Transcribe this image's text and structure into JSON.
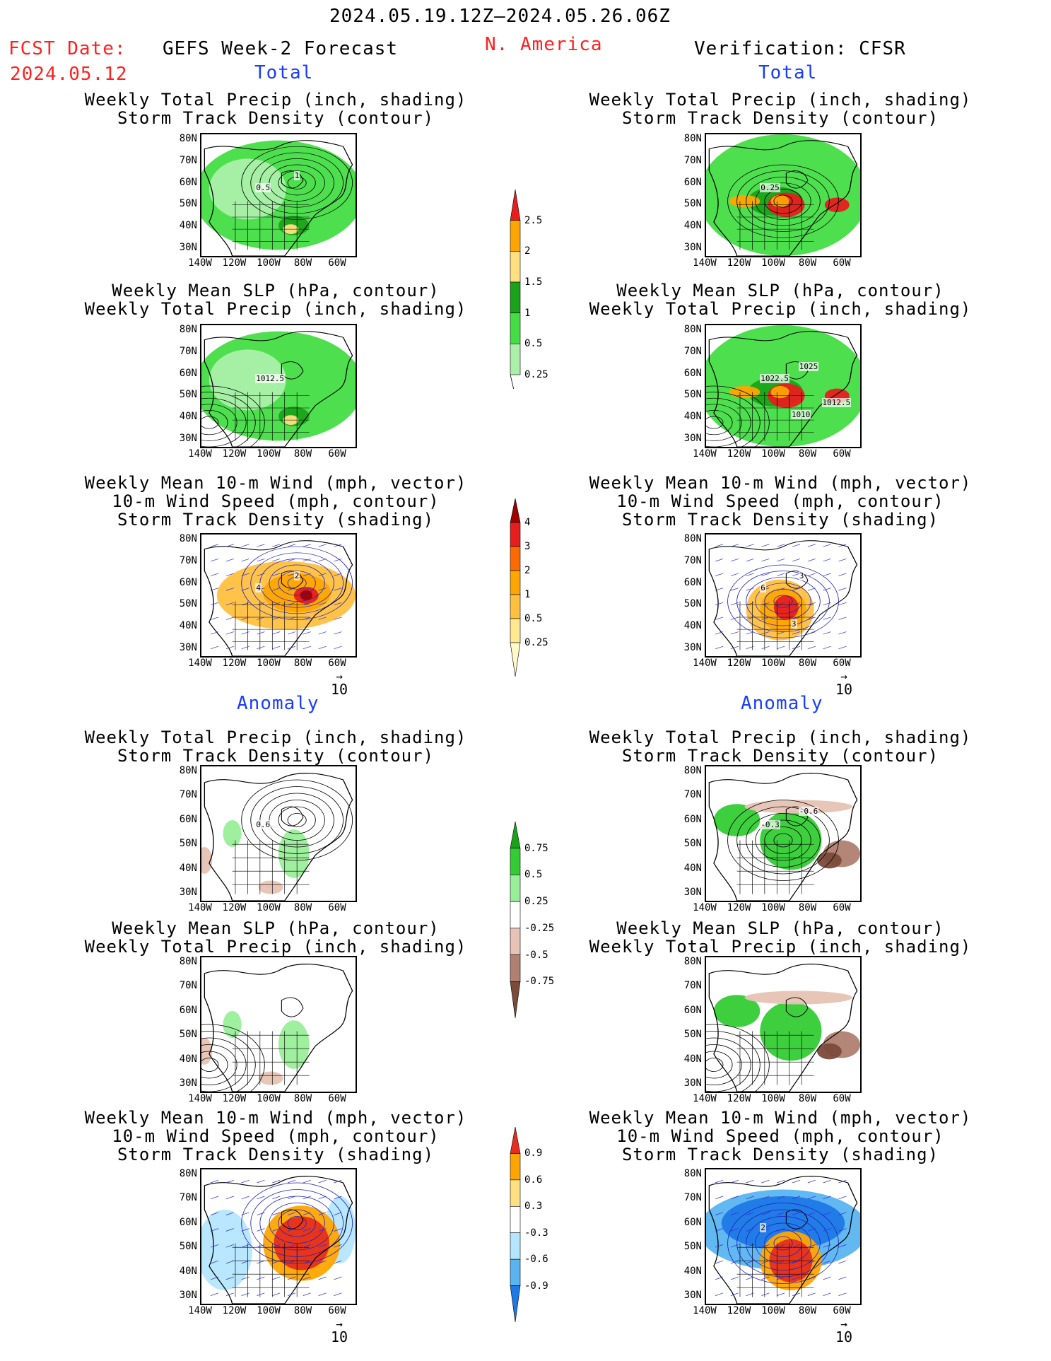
{
  "header": {
    "date_range": "2024.05.19.12Z–2024.05.26.06Z",
    "fcst_label": "FCST Date:",
    "fcst_date": "2024.05.12",
    "left_title": "GEFS Week-2 Forecast",
    "region": "N. America",
    "right_title": "Verification: CFSR"
  },
  "sections": {
    "total": "Total",
    "anomaly": "Anomaly"
  },
  "titles": {
    "precip_storm": [
      "Weekly Total Precip (inch, shading)",
      "Storm Track Density (contour)"
    ],
    "slp_precip": [
      "Weekly Mean SLP (hPa, contour)",
      "Weekly Total Precip (inch, shading)"
    ],
    "wind_storm": [
      "Weekly Mean 10-m Wind (mph, vector)",
      "10-m Wind Speed (mph, contour)",
      "Storm Track Density (shading)"
    ]
  },
  "axes": {
    "lat_ticks": [
      "80N",
      "70N",
      "60N",
      "50N",
      "40N",
      "30N"
    ],
    "lon_ticks": [
      "140W",
      "120W",
      "100W",
      "80W",
      "60W"
    ]
  },
  "vector_ref": "10",
  "contour_labels": {
    "f_total_precip": [
      "0.5",
      "1"
    ],
    "v_total_precip": [
      "0.25"
    ],
    "f_total_slp": [
      "1012.5"
    ],
    "v_total_slp": [
      "1022.5",
      "1025",
      "1010",
      "1012.5"
    ],
    "f_total_wind": [
      "4",
      "2"
    ],
    "v_total_wind": [
      "6",
      "3",
      "3"
    ],
    "f_anom_precip": [
      "0.6"
    ],
    "v_anom_precip": [
      "-0.3",
      "-0.6"
    ],
    "f_anom_slp": [],
    "v_anom_slp": [],
    "f_anom_wind": [],
    "v_anom_wind": [
      "2"
    ]
  },
  "colorbars": {
    "total_precip": {
      "labels": [
        "2.5",
        "2",
        "1.5",
        "1",
        "0.5",
        "0.25"
      ],
      "colors": [
        "#e61e1e",
        "#ffa500",
        "#ffe080",
        "#1aa31a",
        "#44dd44",
        "#aaf0aa"
      ]
    },
    "total_storm": {
      "labels": [
        "4",
        "3",
        "2",
        "1",
        "0.5",
        "0.25"
      ],
      "colors": [
        "#a00000",
        "#e61e1e",
        "#ff6a00",
        "#ffa500",
        "#ffc040",
        "#ffe890",
        "#fff8c8"
      ]
    },
    "anom_precip": {
      "labels": [
        "0.75",
        "0.5",
        "0.25",
        "-0.25",
        "-0.5",
        "-0.75"
      ],
      "colors": [
        "#1aa31a",
        "#33cc33",
        "#99ee99",
        "#ffffff",
        "#e6c3b4",
        "#b08070",
        "#7a4a3a"
      ]
    },
    "anom_storm": {
      "labels": [
        "0.9",
        "0.6",
        "0.3",
        "-0.3",
        "-0.6",
        "-0.9"
      ],
      "colors": [
        "#e62e1e",
        "#ffa500",
        "#ffe080",
        "#ffffff",
        "#b4e6ff",
        "#5ab4f0",
        "#1e78e6"
      ]
    }
  }
}
